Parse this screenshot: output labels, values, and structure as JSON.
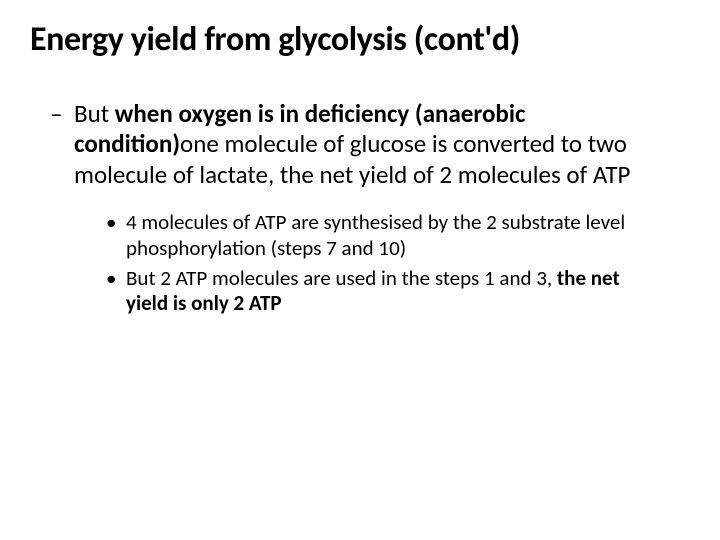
{
  "slide": {
    "title": "Energy yield from glycolysis (cont'd)",
    "body": {
      "dash": "–",
      "prefix": "But ",
      "boldPart": "when oxygen is in deficiency (anaerobic condition)",
      "rest": "one molecule of glucose is converted to two molecule of lactate, the net yield of 2 molecules of ATP"
    },
    "sub": [
      {
        "bullet": "•",
        "text": "4 molecules of ATP are synthesised by the 2 substrate level phosphorylation (steps 7 and 10)"
      },
      {
        "bullet": "•",
        "prefix": "But 2 ATP molecules are used in the steps 1 and 3, ",
        "boldPart": "the net yield is only 2 ATP"
      }
    ]
  },
  "style": {
    "background_color": "#ffffff",
    "text_color": "#000000",
    "title_fontsize": 34,
    "title_fontweight": 700,
    "level1_fontsize": 25,
    "level2_fontsize": 21,
    "font_family": "Calibri"
  }
}
